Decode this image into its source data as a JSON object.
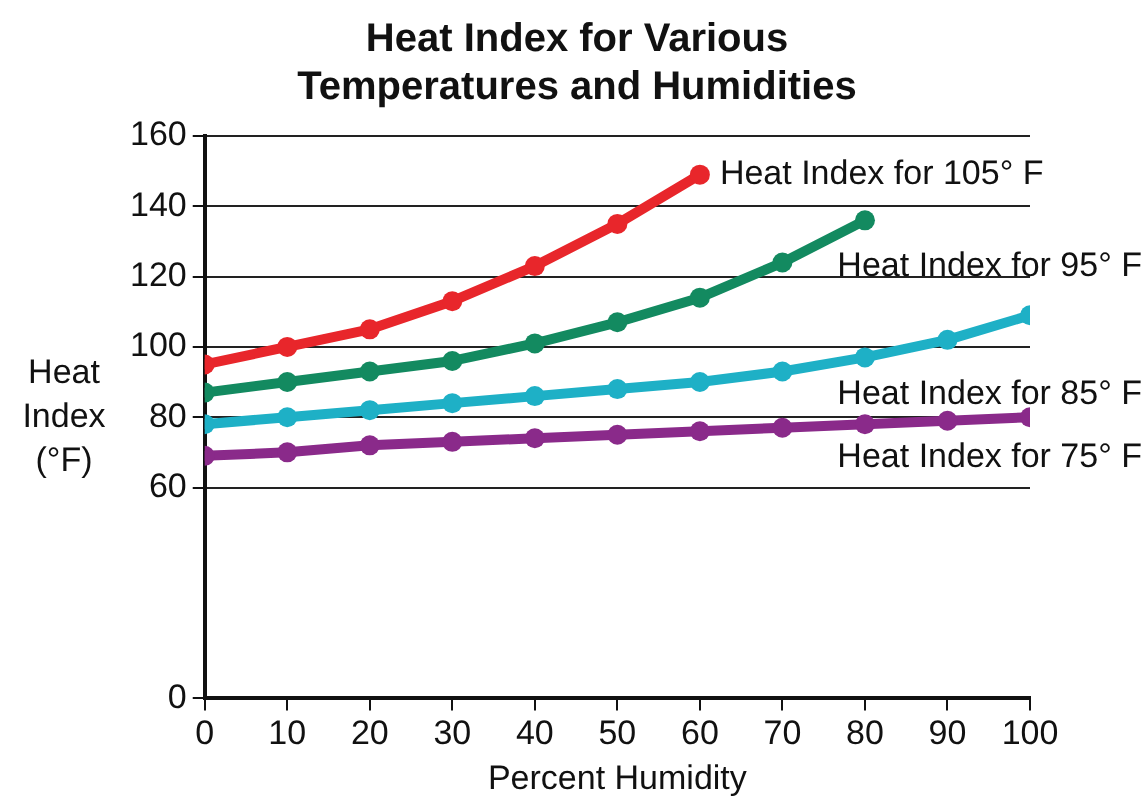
{
  "chart_data": {
    "type": "line",
    "title": "Heat Index for Various Temperatures and Humidities",
    "xlabel": "Percent Humidity",
    "ylabel": "Heat Index (°F)",
    "xlim": [
      0,
      100
    ],
    "xticks": [
      0,
      10,
      20,
      30,
      40,
      50,
      60,
      70,
      80,
      90,
      100
    ],
    "ylim": [
      0,
      160
    ],
    "yticks": [
      0,
      60,
      80,
      100,
      120,
      140,
      160
    ],
    "grid": "y",
    "legend": false,
    "marker": "circle",
    "line_style": "solid",
    "series": [
      {
        "name": "Heat Index for 105° F",
        "color": "#e8262b",
        "x": [
          0,
          10,
          20,
          30,
          40,
          50,
          60
        ],
        "values": [
          95,
          100,
          105,
          113,
          123,
          135,
          149
        ]
      },
      {
        "name": "Heat Index for 95° F",
        "color": "#138a60",
        "x": [
          0,
          10,
          20,
          30,
          40,
          50,
          60,
          70,
          80
        ],
        "values": [
          87,
          90,
          93,
          96,
          101,
          107,
          114,
          124,
          136
        ]
      },
      {
        "name": "Heat Index for 85° F",
        "color": "#1eb0c6",
        "x": [
          0,
          10,
          20,
          30,
          40,
          50,
          60,
          70,
          80,
          90,
          100
        ],
        "values": [
          78,
          80,
          82,
          84,
          86,
          88,
          90,
          93,
          97,
          102,
          109
        ]
      },
      {
        "name": "Heat Index for 75° F",
        "color": "#8a2a8a",
        "x": [
          0,
          10,
          20,
          30,
          40,
          50,
          60,
          70,
          80,
          90,
          100
        ],
        "values": [
          69,
          70,
          72,
          73,
          74,
          75,
          76,
          77,
          78,
          79,
          80
        ]
      }
    ]
  }
}
